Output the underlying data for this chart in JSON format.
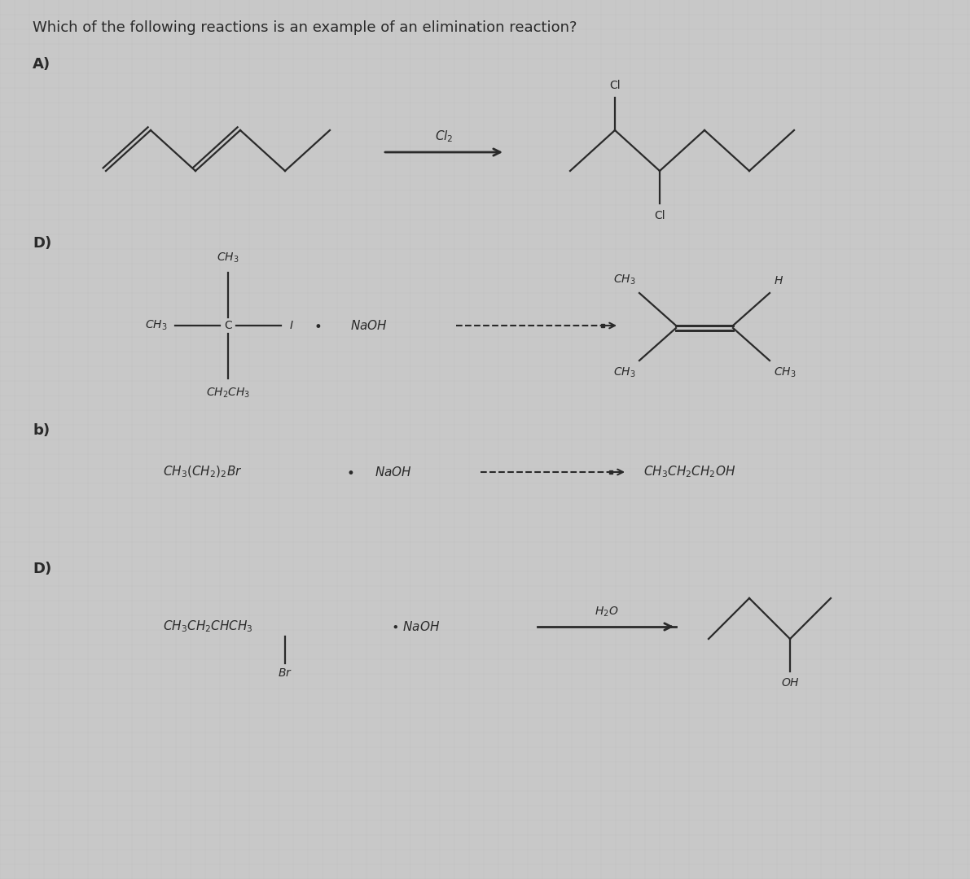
{
  "title": "Which of the following reactions is an example of an elimination reaction?",
  "bg_color": "#c8c8c8",
  "text_color": "#2a2a2a",
  "line_color": "#2a2a2a",
  "label_A": "A)",
  "label_B": "D)",
  "label_C": "b)",
  "label_D": "D)",
  "fs_title": 13,
  "fs_label": 13,
  "fs_chem": 11,
  "fs_small": 10,
  "lw": 1.6
}
